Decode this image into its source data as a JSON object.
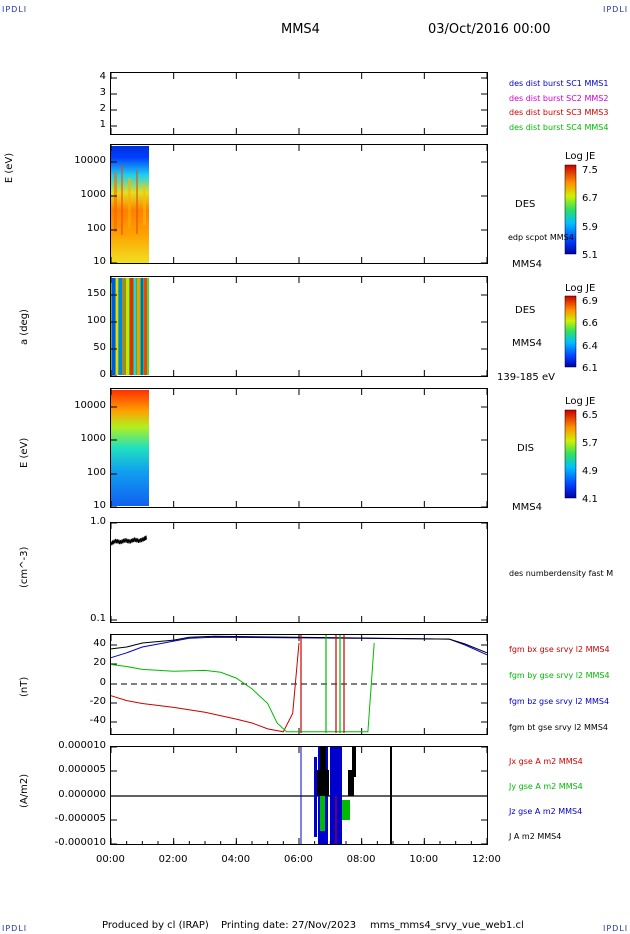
{
  "header": {
    "corner_label": "IPDLI",
    "spacecraft": "MMS4",
    "date_time": "03/Oct/2016 00:00"
  },
  "footer": {
    "produced_by": "Produced by cl (IRAP)",
    "printing_date": "Printing date: 27/Nov/2023",
    "file_name": "mms_mms4_srvy_vue_web1.cl"
  },
  "time_axis": {
    "tick_labels": [
      "00:00",
      "02:00",
      "04:00",
      "06:00",
      "08:00",
      "10:00",
      "12:00"
    ],
    "range_hours": [
      0,
      12
    ]
  },
  "panels": {
    "burst": {
      "y_ticks": [
        "1",
        "2",
        "3",
        "4"
      ],
      "legend": [
        {
          "text": "des dist burst SC1 MMS1",
          "color": "#0000cc"
        },
        {
          "text": "des dist burst SC2 MMS2",
          "color": "#cc00cc"
        },
        {
          "text": "des dist burst SC3 MMS3",
          "color": "#cc0000"
        },
        {
          "text": "des dist burst SC4 MMS4",
          "color": "#00bb00"
        }
      ]
    },
    "des_energy": {
      "ylabel": "E (eV)",
      "y_ticks": [
        "10",
        "100",
        "1000",
        "10000"
      ],
      "label": "DES",
      "overlay_label": "edp scpot MMS4",
      "sc_label": "MMS4",
      "colorbar": {
        "title": "Log JE",
        "ticks": [
          "7.5",
          "6.7",
          "5.9",
          "5.1"
        ]
      }
    },
    "des_pitch": {
      "ylabel": "a (deg)",
      "y_ticks": [
        "0",
        "50",
        "100",
        "150"
      ],
      "label": "DES",
      "sc_label": "MMS4",
      "energy_range": "139-185 eV",
      "colorbar": {
        "title": "Log JE",
        "ticks": [
          "6.9",
          "6.6",
          "6.4",
          "6.1"
        ]
      }
    },
    "dis_energy": {
      "ylabel": "E (eV)",
      "y_ticks": [
        "10",
        "100",
        "1000",
        "10000"
      ],
      "label": "DIS",
      "sc_label": "MMS4",
      "colorbar": {
        "title": "Log JE",
        "ticks": [
          "6.5",
          "5.7",
          "4.9",
          "4.1"
        ]
      }
    },
    "density": {
      "ylabel": "(cm^-3)",
      "y_ticks": [
        "0.1",
        "1.0"
      ],
      "legend": [
        {
          "text": "des numberdensity fast M",
          "color": "#000000"
        }
      ]
    },
    "bfield": {
      "ylabel": "(nT)",
      "y_ticks": [
        "-40",
        "-20",
        "0",
        "20",
        "40"
      ],
      "legend": [
        {
          "text": "fgm bx gse srvy l2 MMS4",
          "color": "#cc0000"
        },
        {
          "text": "fgm by gse srvy l2 MMS4",
          "color": "#00bb00"
        },
        {
          "text": "fgm bz gse srvy l2 MMS4",
          "color": "#0000cc"
        },
        {
          "text": "fgm bt gse srvy l2 MMS4",
          "color": "#000000"
        }
      ]
    },
    "current": {
      "ylabel": "(A/m2)",
      "y_ticks": [
        "-0.000010",
        "-0.000005",
        "0.000000",
        "0.000005",
        "0.000010"
      ],
      "legend": [
        {
          "text": "Jx gse A m2 MMS4",
          "color": "#cc0000"
        },
        {
          "text": "Jy gse A m2 MMS4",
          "color": "#00bb00"
        },
        {
          "text": "Jz gse A m2 MMS4",
          "color": "#0000cc"
        },
        {
          "text": "J A m2 MMS4",
          "color": "#000000"
        }
      ]
    }
  },
  "chart_data": [
    {
      "type": "line",
      "title": "des numberdensity fast M",
      "ylabel": "(cm^-3)",
      "yscale": "log",
      "ylim": [
        0.1,
        1.0
      ],
      "x_hours": [
        0.0,
        0.15,
        0.3,
        0.45,
        0.6,
        0.75,
        0.9,
        1.05,
        1.15
      ],
      "values": [
        0.62,
        0.66,
        0.64,
        0.67,
        0.65,
        0.68,
        0.66,
        0.69,
        0.72
      ]
    },
    {
      "type": "line",
      "title": "fgm gse srvy l2 MMS4",
      "ylabel": "(nT)",
      "ylim": [
        -50,
        50
      ],
      "series": [
        {
          "name": "fgm bx gse srvy l2 MMS4",
          "color": "#cc0000",
          "x": [
            0,
            0.5,
            1,
            2,
            3,
            4,
            4.5,
            5,
            5.5,
            5.8,
            6.0
          ],
          "y": [
            -12,
            -17,
            -20,
            -24,
            -29,
            -36,
            -40,
            -46,
            -49,
            -30,
            42
          ]
        },
        {
          "name": "fgm by gse srvy l2 MMS4",
          "color": "#00bb00",
          "x": [
            0,
            0.5,
            1,
            2,
            3,
            3.5,
            4,
            4.5,
            5,
            5.3,
            5.6,
            8.2,
            8.4
          ],
          "y": [
            20,
            18,
            15,
            13,
            14,
            12,
            6,
            -5,
            -20,
            -40,
            -49,
            -49,
            42
          ]
        },
        {
          "name": "fgm bz gse srvy l2 MMS4",
          "color": "#0000cc",
          "x": [
            0,
            0.5,
            1,
            2,
            2.5,
            3.3,
            10.8,
            11.3,
            12
          ],
          "y": [
            27,
            32,
            38,
            44,
            47,
            48,
            46,
            40,
            30
          ]
        },
        {
          "name": "fgm bt gse srvy l2 MMS4",
          "color": "#000000",
          "x": [
            0,
            0.5,
            1,
            2,
            2.5,
            3.3,
            10.8,
            11.3,
            12
          ],
          "y": [
            36,
            38,
            42,
            45,
            48,
            49,
            46,
            41,
            32
          ]
        }
      ]
    },
    {
      "type": "line",
      "title": "J gse A m2 MMS4",
      "ylabel": "(A/m2)",
      "ylim": [
        -1e-05,
        1e-05
      ],
      "x_range_hours": [
        6.0,
        9.0
      ]
    }
  ]
}
